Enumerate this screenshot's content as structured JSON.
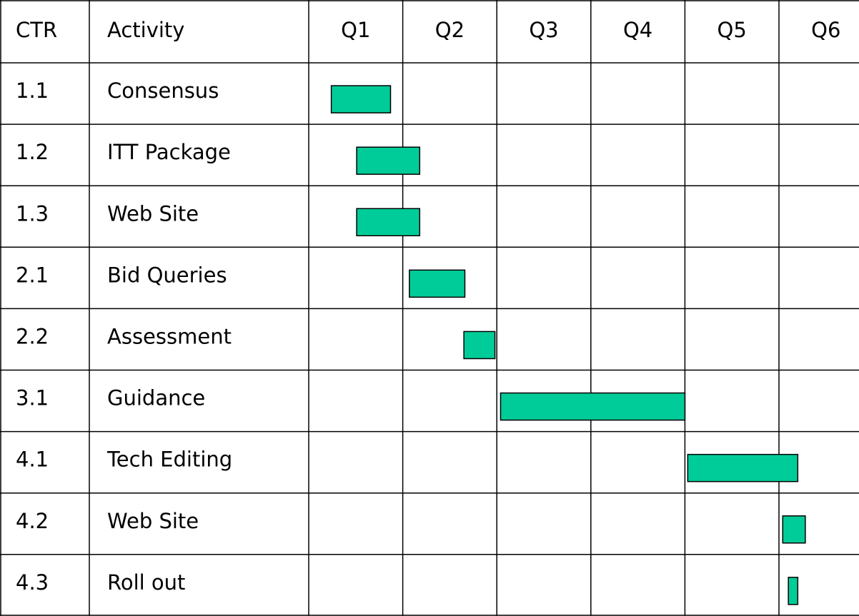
{
  "chart_data": {
    "type": "gantt",
    "columns": [
      "CTR",
      "Activity"
    ],
    "categories": [
      "Q1",
      "Q2",
      "Q3",
      "Q4",
      "Q5",
      "Q6"
    ],
    "color": "#00cc99",
    "tasks": [
      {
        "ctr": "1.1",
        "activity": "Consensus",
        "start": 0.24,
        "end": 0.87
      },
      {
        "ctr": "1.2",
        "activity": "ITT Package",
        "start": 0.51,
        "end": 1.18
      },
      {
        "ctr": "1.3",
        "activity": "Web Site",
        "start": 0.51,
        "end": 1.18
      },
      {
        "ctr": "2.1",
        "activity": "Bid Queries",
        "start": 1.07,
        "end": 1.66
      },
      {
        "ctr": "2.2",
        "activity": "Assessment",
        "start": 1.65,
        "end": 1.98
      },
      {
        "ctr": "3.1",
        "activity": "Guidance",
        "start": 2.04,
        "end": 4.0
      },
      {
        "ctr": "4.1",
        "activity": "Tech Editing",
        "start": 4.03,
        "end": 5.2
      },
      {
        "ctr": "4.2",
        "activity": "Web Site",
        "start": 5.04,
        "end": 5.28
      },
      {
        "ctr": "4.3",
        "activity": "Roll out",
        "start": 5.1,
        "end": 5.2
      }
    ]
  }
}
